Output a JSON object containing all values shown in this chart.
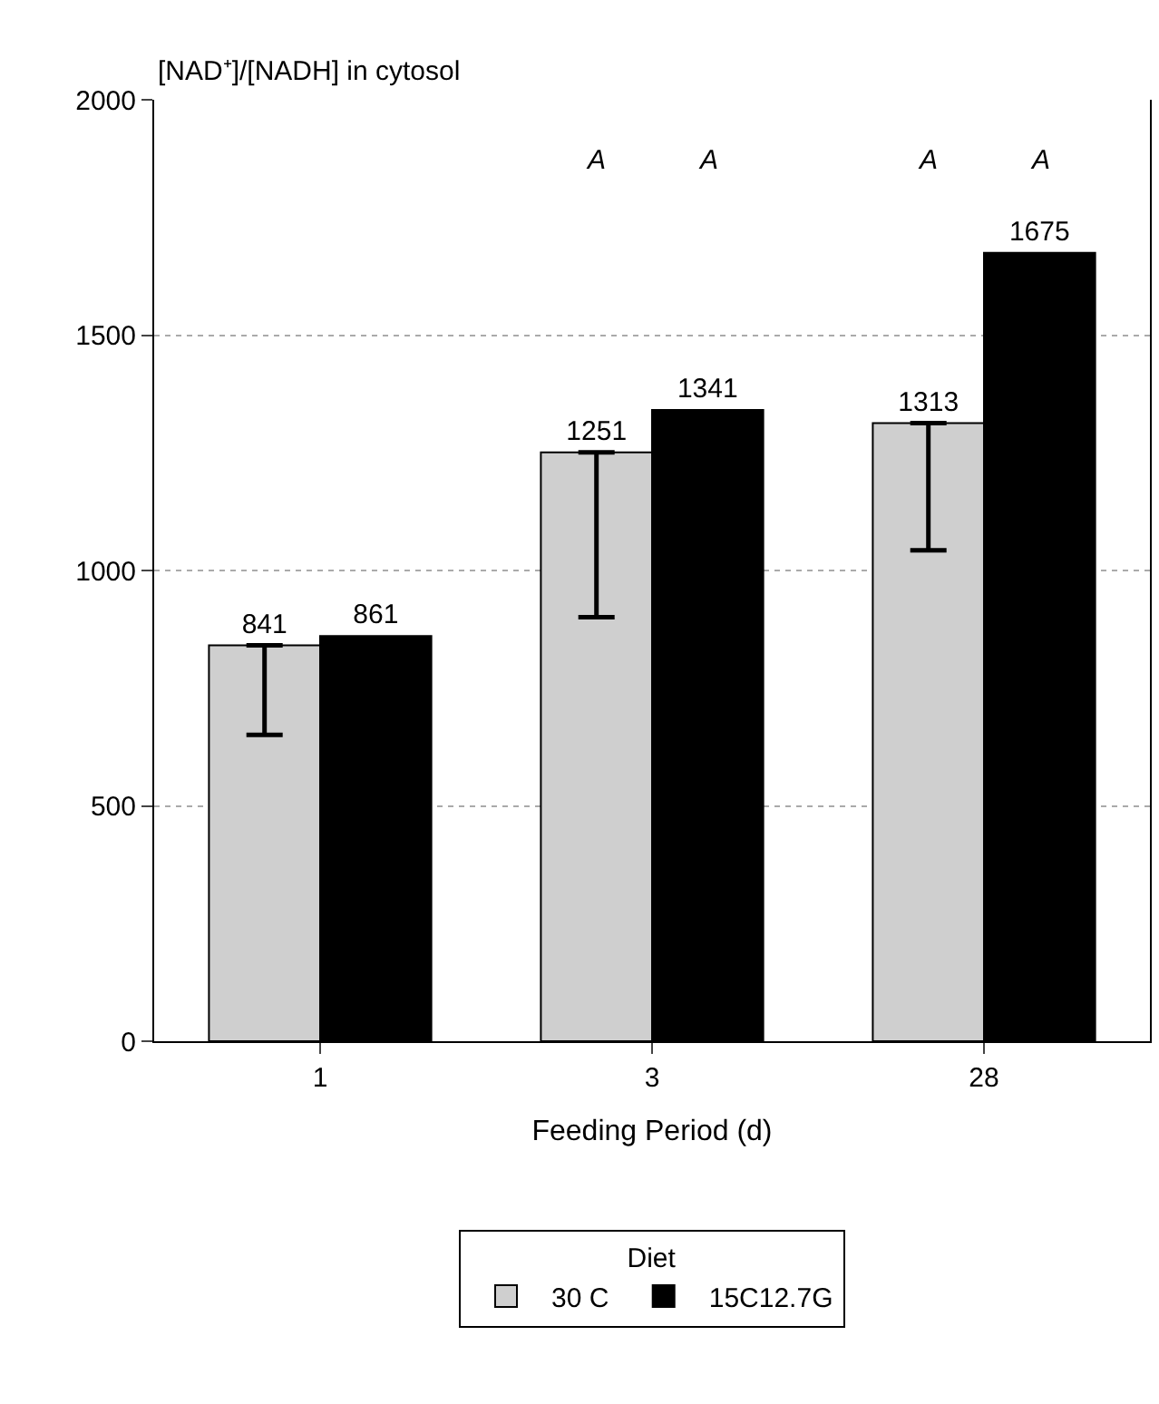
{
  "chart_data": {
    "type": "bar",
    "ylabel": "[NAD⁺]/[NADH] in cytosol",
    "xlabel": "Feeding Period (d)",
    "legend_title": "Diet",
    "categories": [
      "1",
      "3",
      "28"
    ],
    "series": [
      {
        "name": "30 C",
        "color": "#cfcfcf",
        "values": [
          841,
          1251,
          1313
        ],
        "errors": [
          [
            651,
            841
          ],
          [
            901,
            1251
          ],
          [
            1043,
            1313
          ]
        ]
      },
      {
        "name": "15C12.7G",
        "color": "#000000",
        "values": [
          861,
          1341,
          1675
        ]
      }
    ],
    "data_labels": true,
    "ylim": [
      0,
      2000
    ],
    "yticks": [
      0,
      500,
      1000,
      1500,
      2000
    ],
    "grid": "y",
    "legend": "bottom",
    "annotations": [
      "A",
      "A",
      "A",
      "A"
    ]
  }
}
